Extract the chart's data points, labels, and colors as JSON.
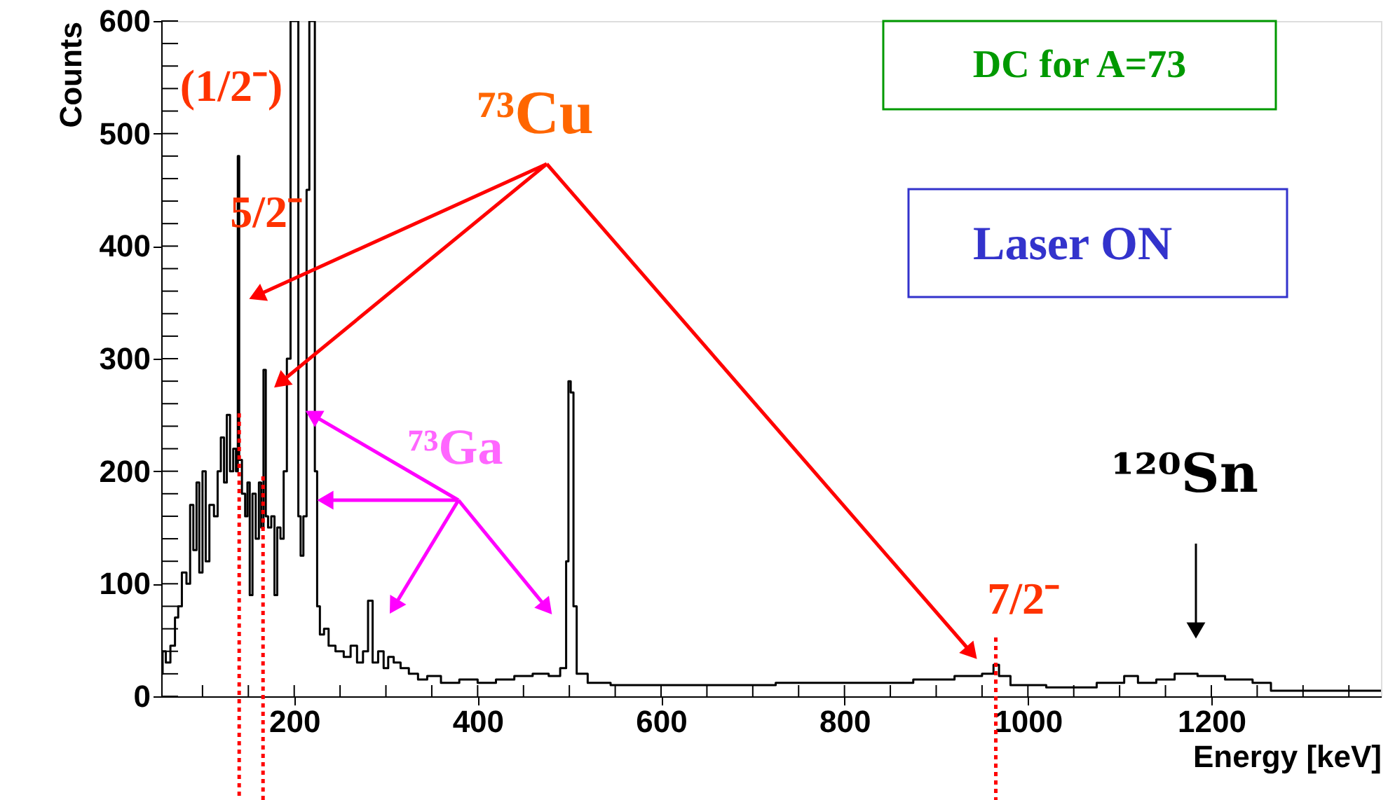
{
  "chart_data": {
    "type": "step",
    "xlabel": "Energy [keV]",
    "ylabel": "Counts",
    "x": [
      55,
      58,
      62,
      68,
      72,
      75,
      80,
      85,
      88,
      92,
      95,
      98,
      102,
      105,
      110,
      115,
      118,
      122,
      125,
      128,
      132,
      135,
      138,
      139,
      141,
      145,
      148,
      150,
      153,
      156,
      160,
      163,
      165,
      168,
      170,
      173,
      177,
      180,
      183,
      187,
      190,
      194,
      198,
      203,
      206,
      208,
      212,
      215,
      218,
      221,
      224,
      226,
      230,
      235,
      240,
      250,
      258,
      265,
      272,
      278,
      283,
      288,
      295,
      300,
      305,
      312,
      320,
      330,
      340,
      350,
      370,
      390,
      410,
      430,
      450,
      470,
      485,
      495,
      498,
      500,
      503,
      506,
      510,
      530,
      560,
      600,
      650,
      700,
      750,
      800,
      850,
      900,
      940,
      960,
      965,
      972,
      990,
      1050,
      1100,
      1110,
      1130,
      1150,
      1170,
      1200,
      1230,
      1260,
      1270,
      1300,
      1350,
      1385
    ],
    "series": [
      {
        "color": "#000000",
        "values": [
          20,
          40,
          30,
          45,
          70,
          80,
          110,
          100,
          170,
          130,
          190,
          110,
          200,
          120,
          170,
          160,
          200,
          230,
          190,
          250,
          200,
          220,
          200,
          480,
          210,
          180,
          160,
          190,
          90,
          180,
          140,
          190,
          150,
          290,
          160,
          150,
          160,
          90,
          150,
          140,
          200,
          300,
          600,
          600,
          160,
          125,
          160,
          450,
          600,
          600,
          200,
          80,
          55,
          60,
          45,
          40,
          35,
          45,
          30,
          40,
          85,
          30,
          40,
          25,
          35,
          30,
          25,
          20,
          15,
          18,
          12,
          15,
          12,
          15,
          18,
          20,
          18,
          25,
          120,
          280,
          270,
          80,
          20,
          12,
          10,
          10,
          10,
          10,
          12,
          12,
          12,
          15,
          18,
          20,
          28,
          18,
          10,
          8,
          12,
          18,
          12,
          15,
          20,
          18,
          15,
          12,
          5,
          5,
          5,
          5
        ]
      }
    ],
    "xlim": [
      55,
      1385
    ],
    "ylim": [
      0,
      600
    ],
    "xticks": [
      {
        "value": 100,
        "label": null
      },
      {
        "value": 150,
        "label": null
      },
      200,
      {
        "value": 250,
        "label": null
      },
      {
        "value": 300,
        "label": null
      },
      {
        "value": 350,
        "label": null
      },
      400,
      {
        "value": 450,
        "label": null
      },
      {
        "value": 500,
        "label": null
      },
      {
        "value": 550,
        "label": null
      },
      600,
      {
        "value": 650,
        "label": null
      },
      {
        "value": 700,
        "label": null
      },
      {
        "value": 750,
        "label": null
      },
      800,
      {
        "value": 850,
        "label": null
      },
      {
        "value": 900,
        "label": null
      },
      {
        "value": 950,
        "label": null
      },
      1000,
      {
        "value": 1050,
        "label": null
      },
      {
        "value": 1100,
        "label": null
      },
      {
        "value": 1150,
        "label": null
      },
      1200,
      {
        "value": 1250,
        "label": null
      },
      {
        "value": 1300,
        "label": null
      },
      {
        "value": 1350,
        "label": null
      }
    ],
    "yticks": [
      0,
      {
        "value": 20,
        "label": null
      },
      {
        "value": 40,
        "label": null
      },
      {
        "value": 60,
        "label": null
      },
      {
        "value": 80,
        "label": null
      },
      100,
      {
        "value": 120,
        "label": null
      },
      {
        "value": 140,
        "label": null
      },
      {
        "value": 160,
        "label": null
      },
      {
        "value": 180,
        "label": null
      },
      200,
      {
        "value": 220,
        "label": null
      },
      {
        "value": 240,
        "label": null
      },
      {
        "value": 260,
        "label": null
      },
      {
        "value": 280,
        "label": null
      },
      300,
      {
        "value": 320,
        "label": null
      },
      {
        "value": 340,
        "label": null
      },
      {
        "value": 360,
        "label": null
      },
      {
        "value": 380,
        "label": null
      },
      400,
      {
        "value": 420,
        "label": null
      },
      {
        "value": 440,
        "label": null
      },
      {
        "value": 460,
        "label": null
      },
      {
        "value": 480,
        "label": null
      },
      500,
      {
        "value": 520,
        "label": null
      },
      {
        "value": 540,
        "label": null
      },
      {
        "value": 560,
        "label": null
      },
      {
        "value": 580,
        "label": null
      },
      600
    ],
    "ref_lines": [
      {
        "axis": "x",
        "value": 140,
        "color": "#ff0000",
        "line_style": "dotted"
      },
      {
        "axis": "x",
        "value": 166,
        "color": "#ff0000",
        "line_style": "dotted"
      },
      {
        "axis": "x",
        "value": 965,
        "color": "#ff0000",
        "line_style": "dotted"
      }
    ],
    "annotations": [
      "(1/2⁻)",
      "5/2⁻",
      "⁷³Cu",
      {
        "text": "⁷³Ga",
        "x": 220,
        "y": 250
      },
      "7/2⁻",
      "¹²⁰Sn",
      "DC for A=73",
      "Laser ON"
    ],
    "grid": false
  }
}
